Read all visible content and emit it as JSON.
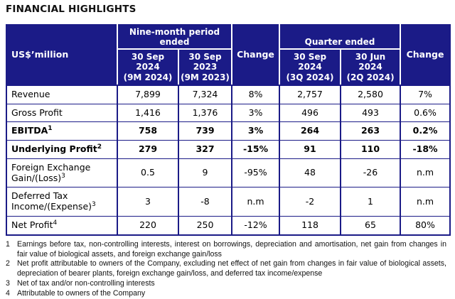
{
  "title": "FINANCIAL HIGHLIGHTS",
  "table": {
    "unit_label": "US$’million",
    "nine_month_group": "Nine-month period ended",
    "quarter_group": "Quarter ended",
    "change_label_9m": "Change",
    "change_label_q": "Change",
    "col_headers": [
      {
        "lines": [
          "30 Sep",
          "2024",
          "(9M 2024)"
        ]
      },
      {
        "lines": [
          "30 Sep",
          "2023",
          "(9M 2023)"
        ]
      },
      {
        "lines": [
          "30 Sep",
          "2024",
          "(3Q 2024)"
        ]
      },
      {
        "lines": [
          "30 Jun",
          "2024",
          "(2Q 2024)"
        ]
      }
    ],
    "rows": [
      {
        "label": "Revenue",
        "sup": "",
        "bold": false,
        "values": [
          "7,899",
          "7,324",
          "8%",
          "2,757",
          "2,580",
          "7%"
        ]
      },
      {
        "label": "Gross Profit",
        "sup": "",
        "bold": false,
        "values": [
          "1,416",
          "1,376",
          "3%",
          "496",
          "493",
          "0.6%"
        ]
      },
      {
        "label": "EBITDA",
        "sup": "1",
        "bold": true,
        "values": [
          "758",
          "739",
          "3%",
          "264",
          "263",
          "0.2%"
        ]
      },
      {
        "label": "Underlying Profit",
        "sup": "2",
        "bold": true,
        "values": [
          "279",
          "327",
          "-15%",
          "91",
          "110",
          "-18%"
        ]
      },
      {
        "label": "Foreign Exchange Gain/(Loss)",
        "sup": "3",
        "bold": false,
        "values": [
          "0.5",
          "9",
          "-95%",
          "48",
          "-26",
          "n.m"
        ]
      },
      {
        "label": "Deferred Tax Income/(Expense)",
        "sup": "3",
        "bold": false,
        "values": [
          "3",
          "-8",
          "n.m",
          "-2",
          "1",
          "n.m"
        ]
      },
      {
        "label": "Net Profit",
        "sup": "4",
        "bold": false,
        "values": [
          "220",
          "250",
          "-12%",
          "118",
          "65",
          "80%"
        ]
      }
    ]
  },
  "footnotes": [
    {
      "num": "1",
      "text": "Earnings before tax, non-controlling interests, interest on borrowings, depreciation and amortisation, net gain from changes in fair value of biological assets, and foreign exchange gain/loss"
    },
    {
      "num": "2",
      "text": "Net profit attributable to owners of the Company, excluding net effect of net gain from changes in fair value of biological assets, depreciation of bearer plants, foreign exchange gain/loss, and deferred tax income/expense"
    },
    {
      "num": "3",
      "text": "Net of tax and/or non-controlling interests"
    },
    {
      "num": "4",
      "text": "Attributable to owners of the Company"
    }
  ],
  "colors": {
    "header_bg": "#1b1b87",
    "header_text": "#ffffff",
    "border": "#1b1b87"
  }
}
